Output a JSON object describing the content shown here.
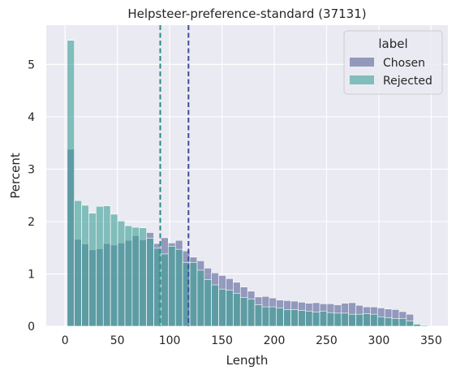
{
  "chart_data": {
    "type": "bar",
    "title": "Helpsteer-preference-standard (37131)",
    "xlabel": "Length",
    "ylabel": "Percent",
    "xlim": [
      -18,
      366
    ],
    "ylim": [
      0,
      5.75
    ],
    "xticks": [
      0,
      50,
      100,
      150,
      200,
      250,
      300,
      350
    ],
    "yticks": [
      0,
      1,
      2,
      3,
      4,
      5
    ],
    "grid": true,
    "legend": {
      "title": "label",
      "placement": "top-right"
    },
    "bin_start": 2,
    "bin_width": 6.9,
    "series": [
      {
        "name": "Chosen",
        "color": "#4a5690",
        "opacity": 0.55,
        "values": [
          3.38,
          1.66,
          1.57,
          1.46,
          1.48,
          1.58,
          1.55,
          1.59,
          1.64,
          1.73,
          1.65,
          1.79,
          1.58,
          1.69,
          1.59,
          1.64,
          1.44,
          1.32,
          1.25,
          1.11,
          1.02,
          0.97,
          0.91,
          0.84,
          0.75,
          0.67,
          0.56,
          0.57,
          0.54,
          0.5,
          0.49,
          0.48,
          0.46,
          0.44,
          0.45,
          0.43,
          0.43,
          0.41,
          0.44,
          0.45,
          0.4,
          0.37,
          0.37,
          0.35,
          0.33,
          0.32,
          0.28,
          0.23,
          0.04,
          0.0
        ]
      },
      {
        "name": "Rejected",
        "color": "#3a9e94",
        "opacity": 0.6,
        "values": [
          5.46,
          2.4,
          2.31,
          2.16,
          2.29,
          2.3,
          2.14,
          2.01,
          1.92,
          1.89,
          1.88,
          1.68,
          1.49,
          1.38,
          1.53,
          1.47,
          1.22,
          1.22,
          1.07,
          0.89,
          0.79,
          0.71,
          0.69,
          0.63,
          0.55,
          0.52,
          0.41,
          0.37,
          0.37,
          0.35,
          0.32,
          0.32,
          0.3,
          0.29,
          0.27,
          0.29,
          0.26,
          0.25,
          0.25,
          0.23,
          0.23,
          0.24,
          0.23,
          0.18,
          0.16,
          0.15,
          0.15,
          0.1,
          0.04,
          0.02
        ]
      }
    ],
    "vlines": [
      {
        "series": "Rejected",
        "x": 91,
        "color": "#2a8a85"
      },
      {
        "series": "Chosen",
        "x": 118,
        "color": "#3d4d9a"
      }
    ],
    "background": "#eaeaf2"
  }
}
